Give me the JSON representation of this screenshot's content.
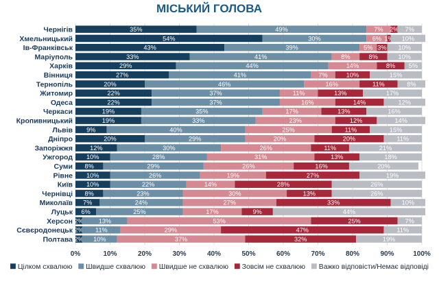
{
  "chart_data": {
    "type": "bar",
    "orientation": "horizontal",
    "stacked": true,
    "title": "МІСЬКИЙ ГОЛОВА",
    "xlim": [
      0,
      100
    ],
    "xticks": [
      "0%",
      "10%",
      "20%",
      "30%",
      "40%",
      "50%",
      "60%",
      "70%",
      "80%",
      "90%",
      "100%"
    ],
    "legend_position": "bottom",
    "categories": [
      "Чернігів",
      "Хмельницький",
      "Ів-Франківськ",
      "Маріуполь",
      "Харків",
      "Вінниця",
      "Тернопіль",
      "Житомир",
      "Одеса",
      "Черкаси",
      "Кропивницький",
      "Львів",
      "Дніпро",
      "Запоріжжя",
      "Ужгород",
      "Суми",
      "Рівне",
      "Київ",
      "Чернівці",
      "Миколаїв",
      "Луцьк",
      "Херсон",
      "Сєвєродонецьк",
      "Полтава"
    ],
    "series": [
      {
        "name": "Цілком схвалюю",
        "color": "#163f5e",
        "values": [
          35,
          54,
          43,
          33,
          29,
          27,
          20,
          22,
          22,
          19,
          19,
          9,
          20,
          12,
          10,
          8,
          10,
          10,
          8,
          7,
          6,
          2,
          2,
          2
        ]
      },
      {
        "name": "Швидше схвалюю",
        "color": "#6d8fa6",
        "values": [
          49,
          30,
          39,
          41,
          44,
          41,
          46,
          37,
          37,
          35,
          33,
          40,
          29,
          30,
          28,
          29,
          26,
          22,
          23,
          24,
          25,
          13,
          11,
          10
        ]
      },
      {
        "name": "Швидше не схвалюю",
        "color": "#d58a93",
        "values": [
          7,
          6,
          5,
          8,
          14,
          7,
          16,
          11,
          16,
          17,
          23,
          25,
          20,
          26,
          31,
          26,
          19,
          14,
          30,
          27,
          17,
          53,
          29,
          37
        ]
      },
      {
        "name": "Зовсім не схвалюю",
        "color": "#a8283b",
        "values": [
          2,
          1,
          3,
          8,
          8,
          10,
          11,
          13,
          14,
          13,
          12,
          11,
          20,
          11,
          13,
          16,
          27,
          28,
          13,
          33,
          9,
          25,
          47,
          32
        ]
      },
      {
        "name": "Важко відповісти/Немає відповіді",
        "color": "#b9bcc3",
        "values": [
          7,
          10,
          10,
          10,
          5,
          15,
          8,
          17,
          12,
          16,
          14,
          15,
          11,
          21,
          18,
          20,
          19,
          26,
          26,
          10,
          44,
          7,
          11,
          19
        ]
      }
    ]
  }
}
